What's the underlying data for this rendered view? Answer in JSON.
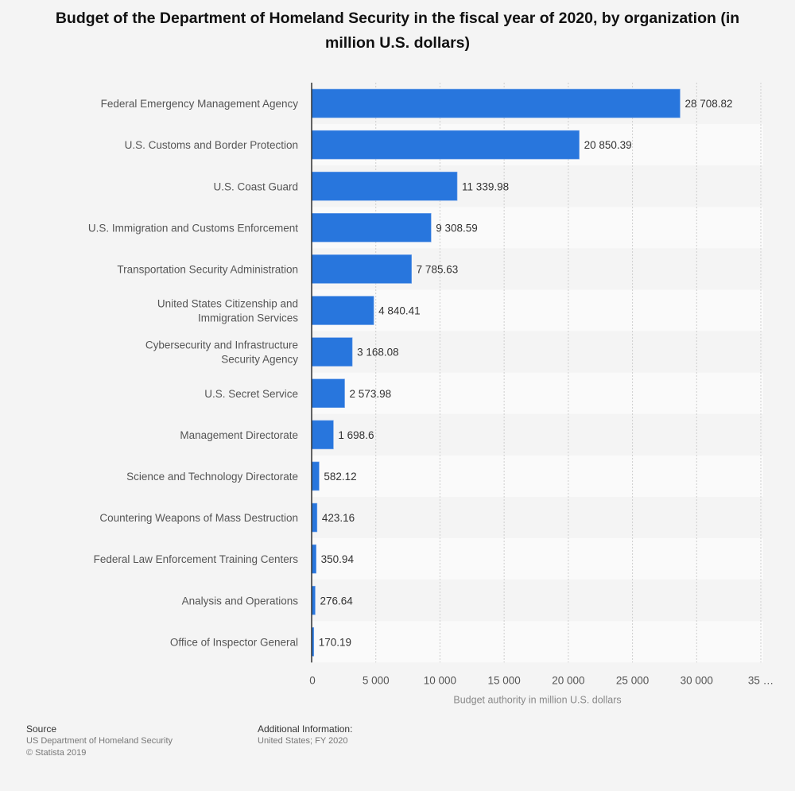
{
  "chart_data": {
    "type": "bar",
    "orientation": "horizontal",
    "title": "Budget of the Department of Homeland Security in the fiscal year of 2020, by organization (in million U.S. dollars)",
    "xlabel": "Budget authority in million U.S. dollars",
    "ylabel": "",
    "xlim": [
      0,
      35000
    ],
    "xticks": [
      "0",
      "5 000",
      "10 000",
      "15 000",
      "20 000",
      "25 000",
      "30 000",
      "35 …"
    ],
    "grid": true,
    "bar_color": "#2876dd",
    "categories": [
      "Federal Emergency Management Agency",
      "U.S. Customs and Border Protection",
      "U.S. Coast Guard",
      "U.S. Immigration and Customs Enforcement",
      "Transportation Security Administration",
      "United States Citizenship and Immigration Services",
      "Cybersecurity and Infrastructure Security Agency",
      "U.S. Secret Service",
      "Management Directorate",
      "Science and Technology Directorate",
      "Countering Weapons of Mass Destruction",
      "Federal Law Enforcement Training Centers",
      "Analysis and Operations",
      "Office of Inspector General"
    ],
    "values": [
      28708.82,
      20850.39,
      11339.98,
      9308.59,
      7785.63,
      4840.41,
      3168.08,
      2573.98,
      1698.6,
      582.12,
      423.16,
      350.94,
      276.64,
      170.19
    ],
    "data_labels": [
      "28 708.82",
      "20 850.39",
      "11 339.98",
      "9 308.59",
      "7 785.63",
      "4 840.41",
      "3 168.08",
      "2 573.98",
      "1 698.6",
      "582.12",
      "423.16",
      "350.94",
      "276.64",
      "170.19"
    ]
  },
  "footer": {
    "source_label": "Source",
    "source_text": "US Department of Homeland Security",
    "copyright": "© Statista 2019",
    "info_label": "Additional Information:",
    "info_text": "United States; FY 2020"
  }
}
